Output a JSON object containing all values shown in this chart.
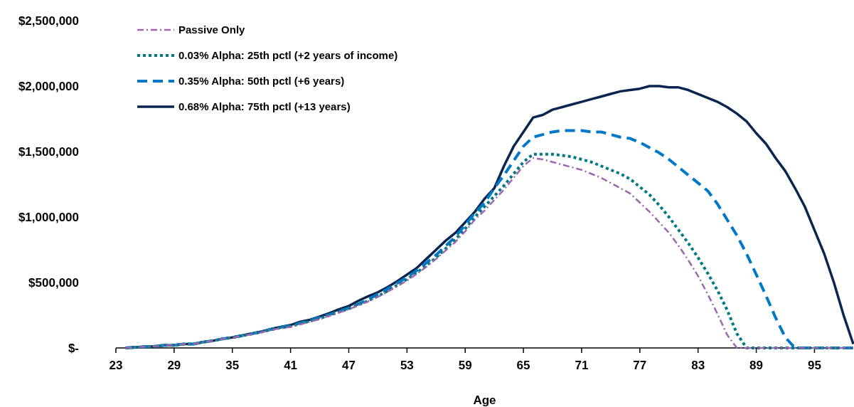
{
  "chart_data": {
    "type": "line",
    "xlabel": "Age",
    "legend": "top left",
    "grid": false,
    "x": [
      24,
      25,
      26,
      27,
      28,
      29,
      30,
      31,
      32,
      33,
      34,
      35,
      36,
      37,
      38,
      39,
      40,
      41,
      42,
      43,
      44,
      45,
      46,
      47,
      48,
      49,
      50,
      51,
      52,
      53,
      54,
      55,
      56,
      57,
      58,
      59,
      60,
      61,
      62,
      63,
      64,
      65,
      66,
      67,
      68,
      69,
      70,
      71,
      72,
      73,
      74,
      75,
      76,
      77,
      78,
      79,
      80,
      81,
      82,
      83,
      84,
      85,
      86,
      87,
      88,
      89,
      90,
      91,
      92,
      93,
      94,
      95,
      96,
      97,
      98,
      99
    ],
    "xlim": [
      23,
      99
    ],
    "xticks": [
      23,
      29,
      35,
      41,
      47,
      53,
      59,
      65,
      71,
      77,
      83,
      89,
      95
    ],
    "ylim": [
      0,
      2500000
    ],
    "yticks": [
      {
        "value": 0,
        "label": "$-"
      },
      {
        "value": 500000,
        "label": "$500,000"
      },
      {
        "value": 1000000,
        "label": "$1,000,000"
      },
      {
        "value": 1500000,
        "label": "$1,500,000"
      },
      {
        "value": 2000000,
        "label": "$2,000,000"
      },
      {
        "value": 2500000,
        "label": "$2,500,000"
      }
    ],
    "series": [
      {
        "name": "Passive Only",
        "color": "#a066b0",
        "line_style": "dashdot",
        "values": [
          0,
          5000,
          10000,
          12000,
          20000,
          20000,
          30000,
          30000,
          45000,
          55000,
          68000,
          78000,
          92000,
          105000,
          120000,
          138000,
          150000,
          160000,
          180000,
          200000,
          220000,
          245000,
          270000,
          295000,
          325000,
          355000,
          390000,
          430000,
          470000,
          515000,
          565000,
          620000,
          680000,
          745000,
          810000,
          890000,
          980000,
          1050000,
          1130000,
          1210000,
          1300000,
          1390000,
          1450000,
          1440000,
          1420000,
          1400000,
          1380000,
          1360000,
          1330000,
          1300000,
          1260000,
          1220000,
          1180000,
          1110000,
          1040000,
          960000,
          880000,
          780000,
          670000,
          550000,
          410000,
          260000,
          100000,
          0,
          0,
          0,
          0,
          0,
          0,
          0,
          0,
          0,
          0,
          0,
          0,
          0
        ]
      },
      {
        "name": "0.03% Alpha: 25th pctl (+2 years of income)",
        "color": "#007a84",
        "line_style": "dotted",
        "values": [
          0,
          5000,
          10000,
          12000,
          20000,
          20000,
          30000,
          30000,
          45000,
          55000,
          69000,
          79000,
          93000,
          107000,
          122000,
          140000,
          155000,
          165000,
          185000,
          205000,
          225000,
          250000,
          275000,
          300000,
          330000,
          360000,
          395000,
          435000,
          480000,
          525000,
          575000,
          630000,
          690000,
          760000,
          830000,
          910000,
          1000000,
          1080000,
          1160000,
          1240000,
          1330000,
          1420000,
          1480000,
          1480000,
          1480000,
          1470000,
          1460000,
          1440000,
          1420000,
          1390000,
          1360000,
          1330000,
          1290000,
          1230000,
          1170000,
          1090000,
          1000000,
          900000,
          800000,
          690000,
          570000,
          440000,
          290000,
          110000,
          0,
          0,
          0,
          0,
          0,
          0,
          0,
          0,
          0,
          0,
          0,
          0
        ]
      },
      {
        "name": "0.35% Alpha: 50th pctl (+6 years)",
        "color": "#0078c8",
        "line_style": "dashed",
        "values": [
          0,
          5000,
          10000,
          12000,
          20000,
          20000,
          30000,
          30000,
          45000,
          55000,
          70000,
          80000,
          94000,
          108000,
          123000,
          142000,
          158000,
          170000,
          190000,
          210000,
          235000,
          255000,
          280000,
          305000,
          335000,
          370000,
          410000,
          450000,
          495000,
          540000,
          590000,
          650000,
          710000,
          780000,
          850000,
          940000,
          1030000,
          1110000,
          1220000,
          1320000,
          1430000,
          1540000,
          1610000,
          1630000,
          1650000,
          1660000,
          1660000,
          1660000,
          1650000,
          1650000,
          1630000,
          1610000,
          1600000,
          1570000,
          1530000,
          1490000,
          1440000,
          1380000,
          1320000,
          1260000,
          1200000,
          1100000,
          980000,
          860000,
          720000,
          560000,
          400000,
          230000,
          80000,
          0,
          0,
          0,
          0,
          0,
          0,
          0
        ]
      },
      {
        "name": "0.68% Alpha: 75th pctl (+13 years)",
        "color": "#0a2550",
        "line_style": "solid",
        "values": [
          0,
          5000,
          10000,
          12000,
          20000,
          20000,
          30000,
          30000,
          45000,
          55000,
          70000,
          80000,
          95000,
          110000,
          125000,
          145000,
          160000,
          175000,
          200000,
          215000,
          240000,
          265000,
          295000,
          320000,
          360000,
          395000,
          425000,
          465000,
          510000,
          560000,
          610000,
          680000,
          750000,
          820000,
          880000,
          960000,
          1040000,
          1140000,
          1220000,
          1390000,
          1540000,
          1650000,
          1760000,
          1780000,
          1820000,
          1840000,
          1860000,
          1880000,
          1900000,
          1920000,
          1940000,
          1960000,
          1970000,
          1980000,
          2000000,
          2000000,
          1990000,
          1990000,
          1970000,
          1940000,
          1910000,
          1880000,
          1840000,
          1790000,
          1730000,
          1640000,
          1560000,
          1450000,
          1350000,
          1220000,
          1080000,
          900000,
          720000,
          500000,
          250000,
          30000
        ]
      }
    ]
  }
}
